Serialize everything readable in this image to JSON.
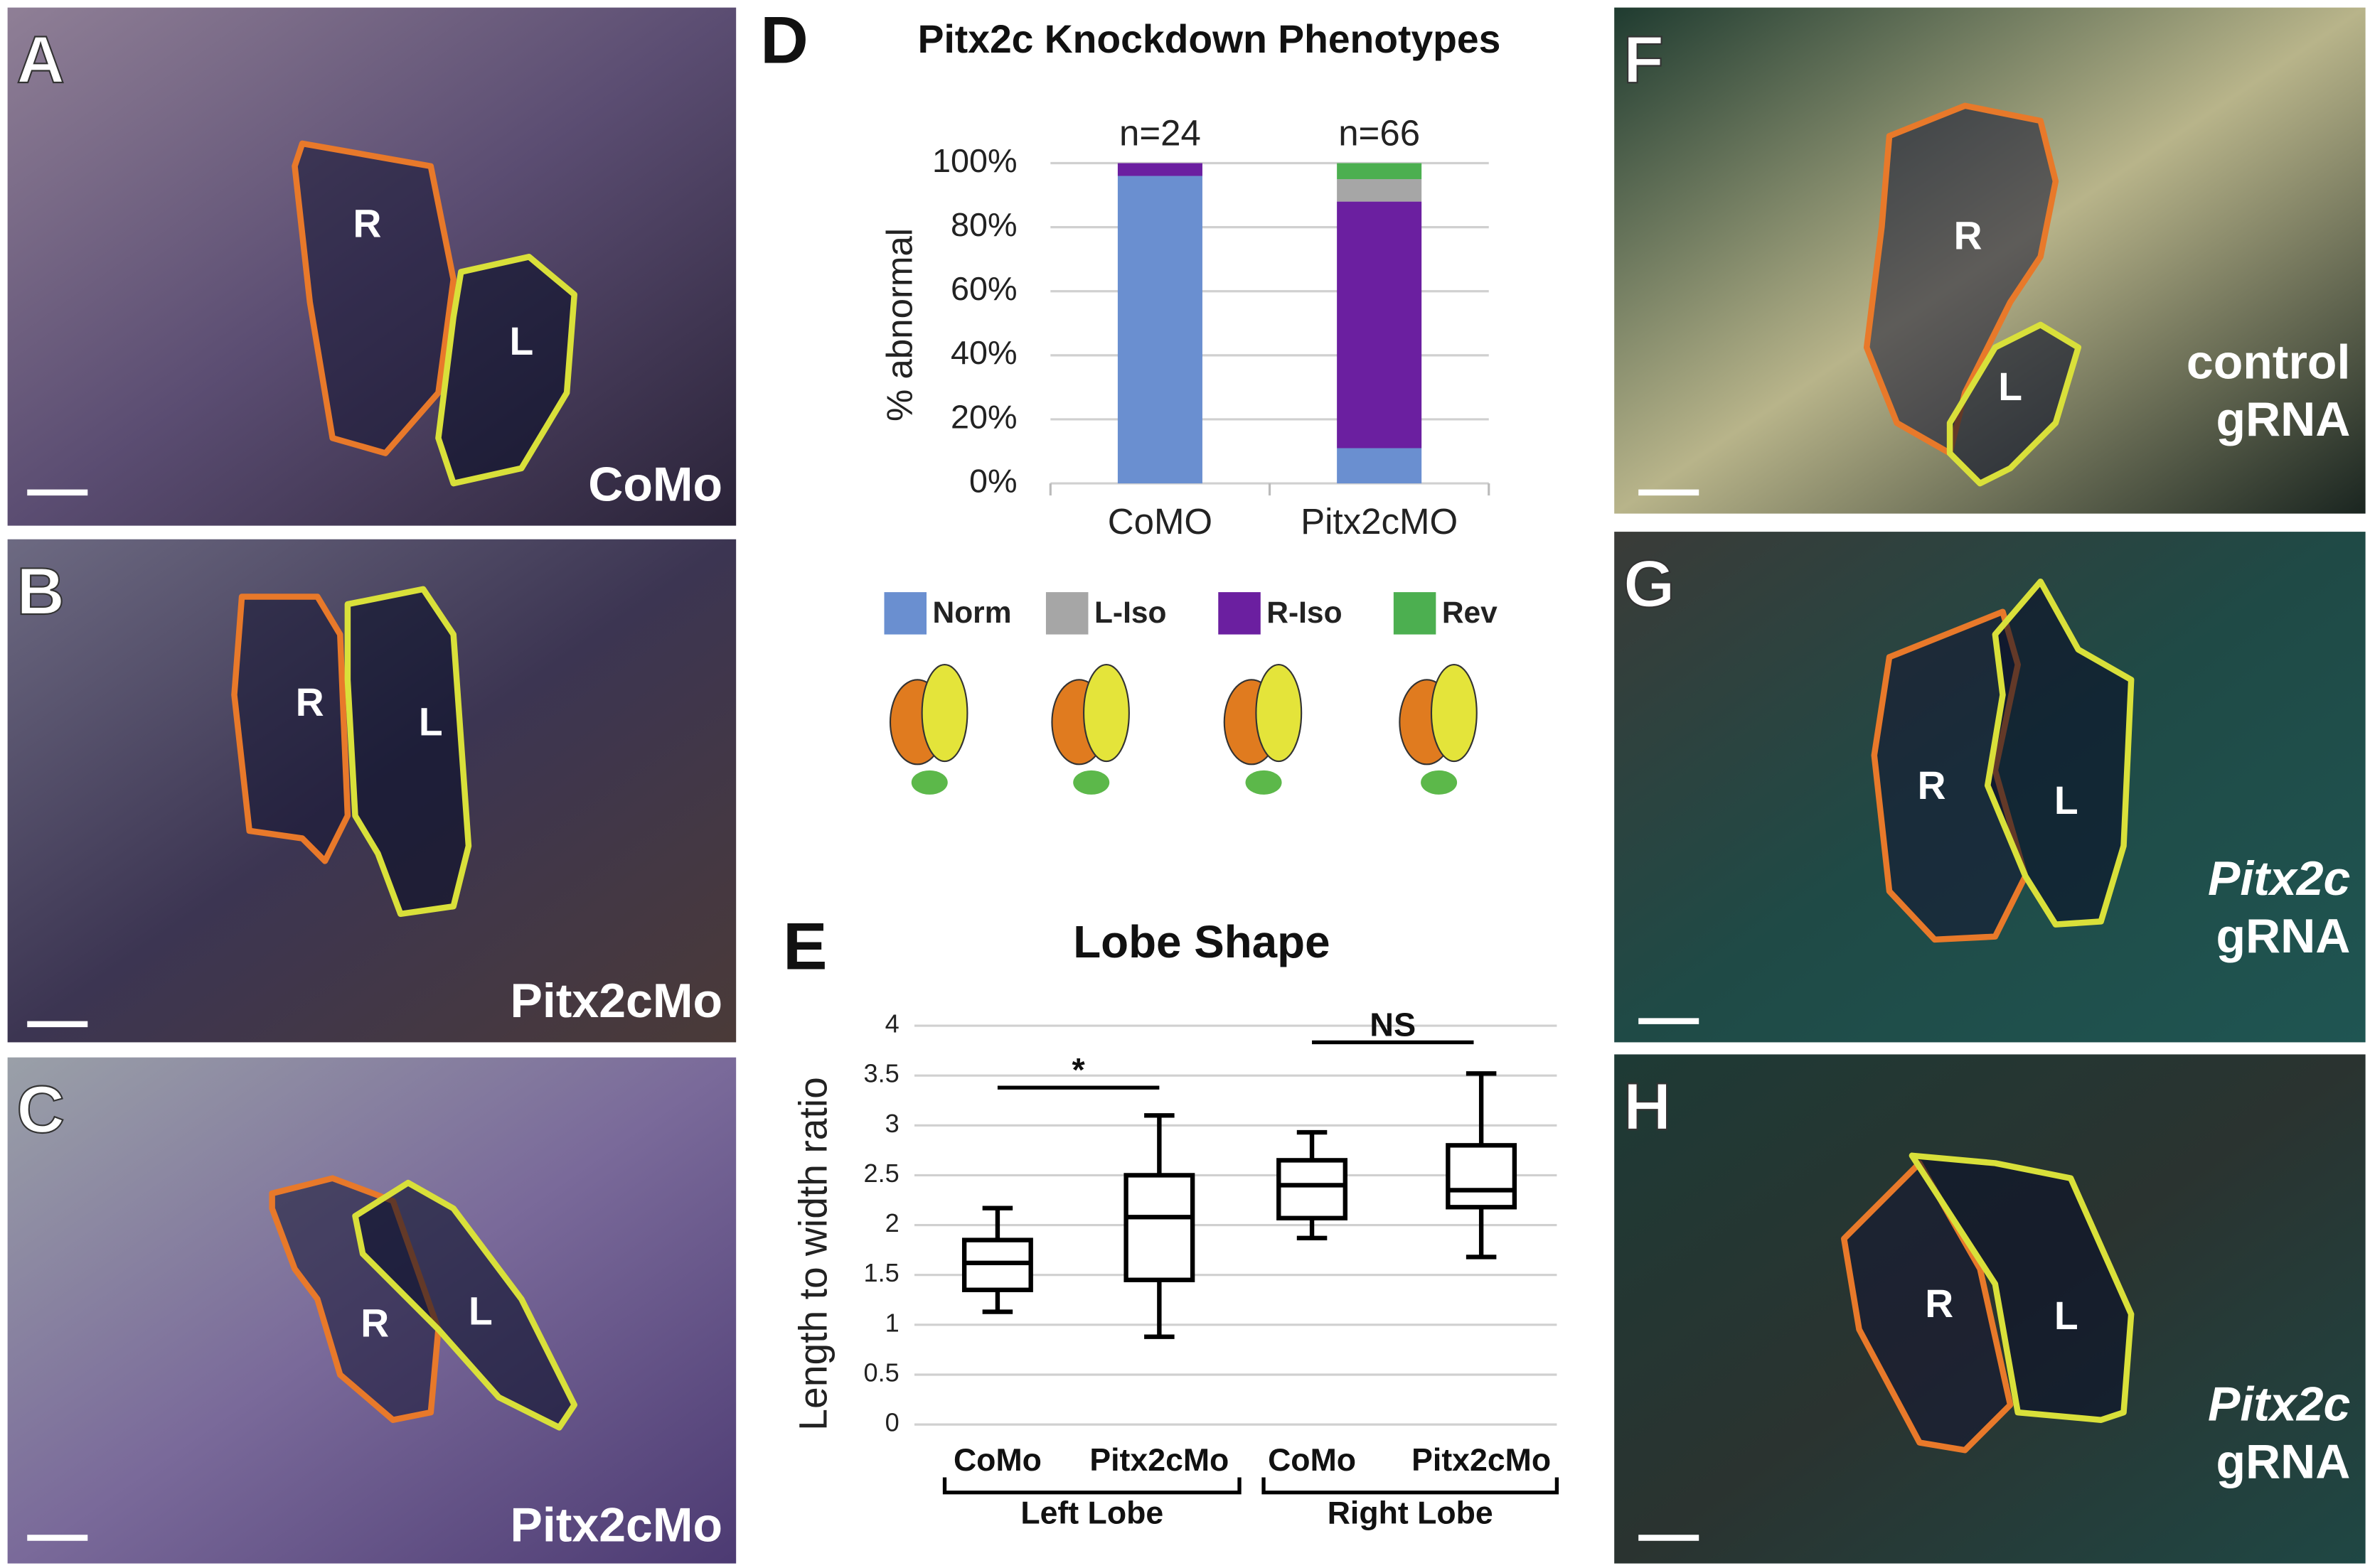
{
  "panels": [
    {
      "letter": "A",
      "caption": [
        "CoMo"
      ],
      "lobes": [
        "R",
        "L"
      ]
    },
    {
      "letter": "B",
      "caption": [
        "Pitx2cMo"
      ],
      "lobes": [
        "R",
        "L"
      ]
    },
    {
      "letter": "C",
      "caption": [
        "Pitx2cMo"
      ],
      "lobes": [
        "R",
        "L"
      ]
    },
    {
      "letter": "F",
      "caption": [
        "control",
        "gRNA"
      ],
      "lobes": [
        "R",
        "L"
      ]
    },
    {
      "letter": "G",
      "caption": [
        "Pitx2c",
        "gRNA"
      ],
      "lobes": [
        "R",
        "L"
      ]
    },
    {
      "letter": "H",
      "caption": [
        "Pitx2c",
        "gRNA"
      ],
      "lobes": [
        "R",
        "L"
      ]
    }
  ],
  "chart_data": [
    {
      "type": "bar",
      "panel": "D",
      "title": "Pitx2c Knockdown Phenotypes",
      "y_label": "% abnormal",
      "categories": [
        "CoMO",
        "Pitx2cMO"
      ],
      "category_notes": [
        "n=24",
        "n=66"
      ],
      "series": [
        {
          "name": "Norm",
          "color": "#6a8fd0",
          "values": [
            96,
            11
          ]
        },
        {
          "name": "R-Iso",
          "color": "#6b1fa0",
          "values": [
            4,
            77
          ]
        },
        {
          "name": "L-Iso",
          "color": "#a6a6a6",
          "values": [
            0,
            7
          ]
        },
        {
          "name": "Rev",
          "color": "#4caf50",
          "values": [
            0,
            5
          ]
        }
      ],
      "ylim": [
        0,
        100
      ],
      "yticks": [
        {
          "value": 0,
          "label": "0%"
        },
        {
          "value": 20,
          "label": "20%"
        },
        {
          "value": 40,
          "label": "40%"
        },
        {
          "value": 60,
          "label": "60%"
        },
        {
          "value": 80,
          "label": "80%"
        },
        {
          "value": 100,
          "label": "100%"
        }
      ],
      "grid": true,
      "stacked": true
    },
    {
      "type": "box",
      "panel": "E",
      "title": "Lobe Shape",
      "y_label": "Length to width ratio",
      "categories": [
        "CoMo",
        "Pitx2cMo",
        "CoMo",
        "Pitx2cMo"
      ],
      "group_labels": [
        "Left Lobe",
        "Right Lobe"
      ],
      "annotations": [
        "*",
        "NS"
      ],
      "boxes": [
        {
          "min": 1.13,
          "q1": 1.35,
          "median": 1.62,
          "q3": 1.85,
          "max": 2.17
        },
        {
          "min": 0.88,
          "q1": 1.45,
          "median": 2.08,
          "q3": 2.5,
          "max": 3.1
        },
        {
          "min": 1.87,
          "q1": 2.07,
          "median": 2.4,
          "q3": 2.65,
          "max": 2.93
        },
        {
          "min": 1.68,
          "q1": 2.18,
          "median": 2.35,
          "q3": 2.8,
          "max": 3.52
        }
      ],
      "ylim": [
        0,
        4
      ],
      "yticks": [
        0,
        0.5,
        1,
        1.5,
        2,
        2.5,
        3,
        3.5,
        4
      ],
      "grid": true
    }
  ]
}
